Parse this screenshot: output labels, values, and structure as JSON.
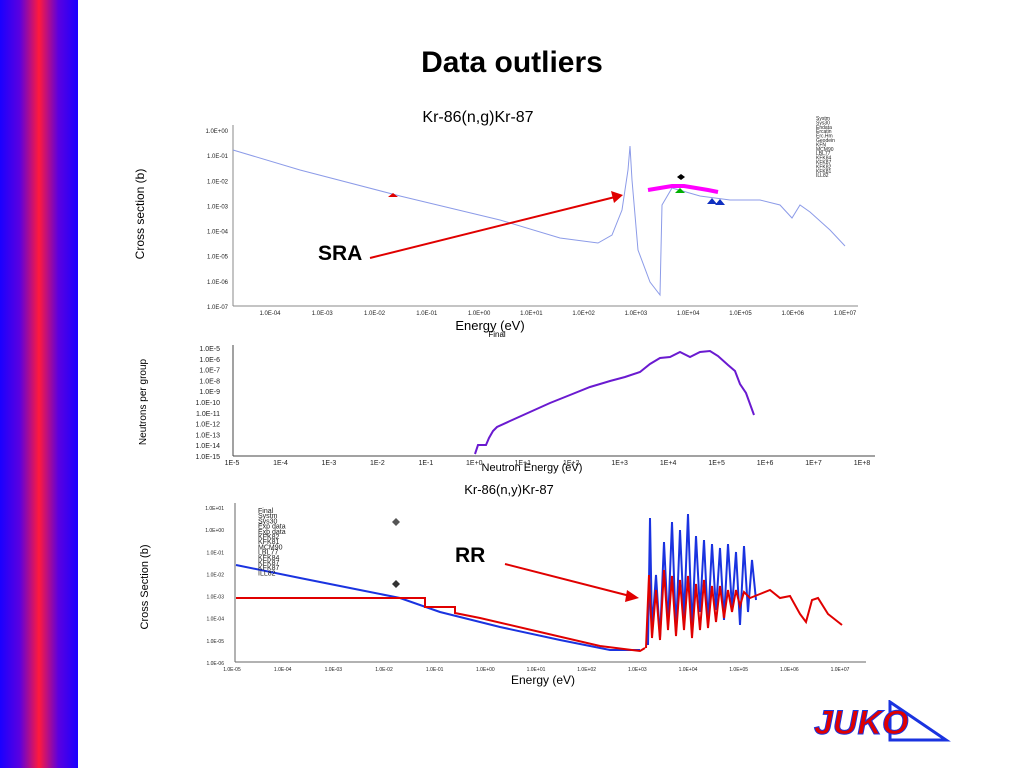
{
  "slide": {
    "title": "Data outliers"
  },
  "annotations": {
    "sra": "SRA",
    "rr": "RR"
  },
  "colors": {
    "accent_red": "#e00000",
    "series_blue": "#1a33e0",
    "series_magenta": "#ff00ff",
    "series_purple": "#6a1ad0"
  },
  "chart_top": {
    "title": "Kr-86(n,g)Kr-87",
    "xlabel": "Energy (eV)",
    "ylabel": "Cross section (b)",
    "yticks": [
      "1.0E+00",
      "1.0E-01",
      "1.0E-02",
      "1.0E-03",
      "1.0E-04",
      "1.0E-05",
      "1.0E-06",
      "1.0E-07"
    ],
    "xticks": [
      "1.0E-04",
      "1.0E-03",
      "1.0E-02",
      "1.0E-01",
      "1.0E+00",
      "1.0E+01",
      "1.0E+02",
      "1.0E+03",
      "1.0E+04",
      "1.0E+05",
      "1.0E+06",
      "1.0E+07"
    ],
    "legend": [
      "Systm",
      "Sys30",
      "Endata",
      "Ercatin",
      "Erc.Hm",
      "Geodein",
      "KFN",
      "MCM90",
      "LBL77",
      "KFK84",
      "KFK87",
      "KFK82",
      "KFK81",
      "ILL82"
    ]
  },
  "chart_mid": {
    "subtitle": "Final",
    "xlabel": "Neutron Energy (eV)",
    "ylabel": "Neutrons per group",
    "yticks": [
      "1.0E-5",
      "1.0E-6",
      "1.0E-7",
      "1.0E-8",
      "1.0E-9",
      "1.0E-10",
      "1.0E-11",
      "1.0E-12",
      "1.0E-13",
      "1.0E-14",
      "1.0E-15"
    ],
    "xticks": [
      "1E-5",
      "1E-4",
      "1E-3",
      "1E-2",
      "1E-1",
      "1E+0",
      "1E+1",
      "1E+2",
      "1E+3",
      "1E+4",
      "1E+5",
      "1E+6",
      "1E+7",
      "1E+8"
    ]
  },
  "chart_bot": {
    "title": "Kr-86(n,y)Kr-87",
    "xlabel": "Energy (eV)",
    "ylabel": "Cross Section (b)",
    "yticks": [
      "1.0E+01",
      "1.0E+00",
      "1.0E-01",
      "1.0E-02",
      "1.0E-03",
      "1.0E-04",
      "1.0E-05",
      "1.0E-06"
    ],
    "xticks": [
      "1.0E-05",
      "1.0E-04",
      "1.0E-03",
      "1.0E-02",
      "1.0E-01",
      "1.0E+00",
      "1.0E+01",
      "1.0E+02",
      "1.0E+03",
      "1.0E+04",
      "1.0E+05",
      "1.0E+06",
      "1.0E+07"
    ],
    "legend": [
      "Final",
      "Systm",
      "Sys30",
      "Exp data",
      "Exp data",
      "KFK82",
      "KFK81",
      "MCM90",
      "LBL77",
      "KFK84",
      "KFK87",
      "KFK87",
      "ILL82"
    ]
  },
  "logo": {
    "text": "JUKO"
  }
}
